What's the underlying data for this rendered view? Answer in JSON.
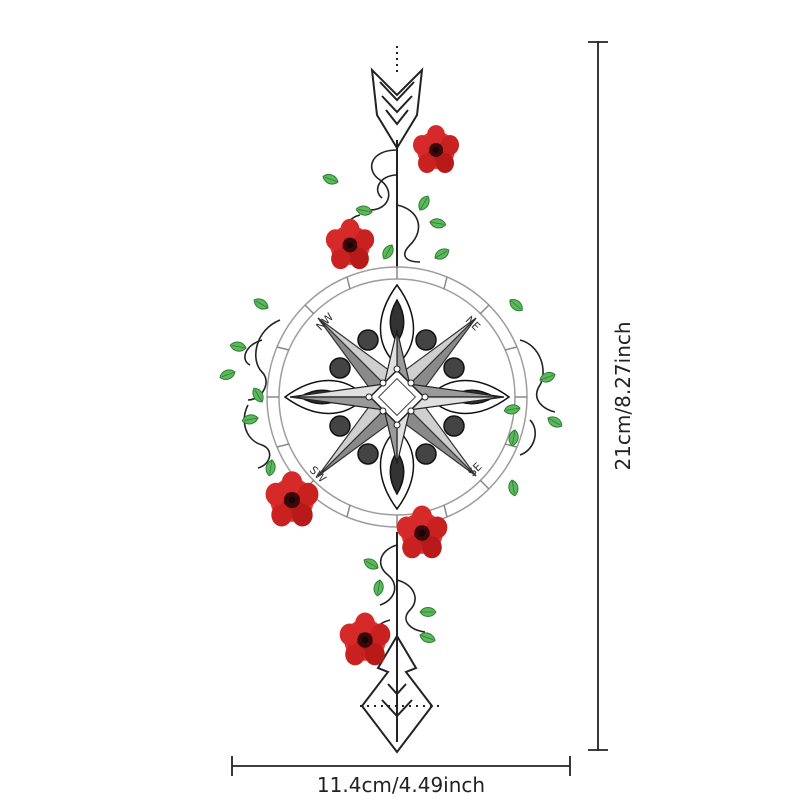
{
  "dimensions": {
    "height_label": "21cm/8.27inch",
    "width_label": "11.4cm/4.49inch"
  },
  "compass": {
    "labels": {
      "nw": "NW",
      "ne": "NE",
      "sw": "SW",
      "se": "SE"
    }
  },
  "colors": {
    "line": "#222222",
    "flower": "#c81e1e",
    "flower_center": "#3a0a0a",
    "leaf": "#4caf50",
    "star_shade": "#9a9a9a",
    "ring": "#9e9e9e"
  }
}
